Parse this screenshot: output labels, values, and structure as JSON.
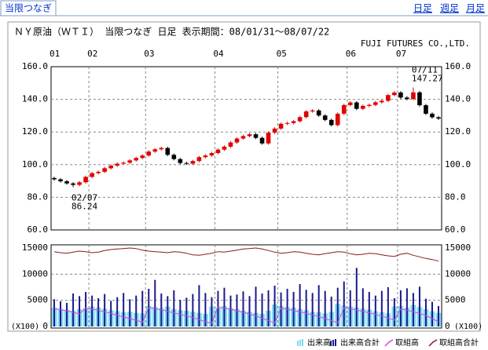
{
  "header": {
    "tab": "当限つなぎ",
    "links": [
      "日足",
      "週足",
      "月足"
    ]
  },
  "chart_data": [
    {
      "type": "candlestick",
      "title": "ＮＹ原油（ＷＴＩ） 当限つなぎ 日足 表示期間：08/01/31～08/07/22",
      "subtitle": "FUJI FUTURES CO.,LTD.",
      "up_color": "#e00000",
      "down_color": "#000000",
      "open": [
        91.8,
        91.0,
        89.8,
        88.5,
        87.6,
        89.2,
        92.5,
        94.8,
        95.6,
        97.8,
        99.4,
        100.6,
        101.2,
        102.6,
        104.1,
        105.6,
        108.0,
        109.4,
        110.2,
        106.0,
        103.4,
        101.0,
        100.6,
        102.2,
        104.6,
        105.6,
        107.1,
        109.2,
        111.0,
        113.6,
        116.0,
        117.5,
        118.6,
        116.4,
        113.0,
        119.6,
        122.1,
        125.0,
        125.5,
        126.6,
        129.1,
        132.6,
        133.2,
        130.1,
        127.4,
        124.2,
        131.2,
        136.5,
        138.1,
        134.2,
        136.0,
        136.6,
        138.2,
        139.1,
        142.6,
        144.2,
        141.1,
        140.2,
        144.3,
        136.4,
        131.2,
        129.0
      ],
      "high": [
        92.6,
        91.8,
        90.6,
        89.3,
        90.0,
        93.3,
        95.6,
        96.4,
        98.6,
        100.2,
        101.4,
        102.0,
        103.4,
        104.9,
        106.4,
        108.8,
        110.2,
        111.0,
        111.0,
        106.8,
        104.2,
        101.8,
        103.0,
        105.4,
        106.4,
        107.9,
        110.0,
        111.8,
        114.4,
        116.8,
        118.3,
        119.4,
        119.4,
        117.2,
        120.4,
        122.9,
        125.8,
        126.3,
        127.4,
        129.9,
        133.4,
        134.0,
        134.0,
        130.9,
        128.2,
        132.0,
        137.3,
        138.9,
        138.9,
        136.8,
        137.4,
        139.0,
        139.9,
        143.4,
        145.0,
        145.0,
        141.9,
        147.27,
        145.1,
        137.2,
        132.0,
        129.8
      ],
      "low": [
        90.2,
        89.0,
        87.7,
        86.24,
        86.8,
        88.4,
        91.7,
        94.0,
        94.8,
        97.0,
        98.6,
        99.8,
        100.4,
        101.8,
        103.3,
        104.8,
        107.2,
        108.6,
        105.2,
        102.6,
        100.2,
        99.8,
        99.8,
        101.4,
        103.8,
        104.8,
        106.3,
        108.4,
        110.2,
        112.8,
        115.2,
        116.7,
        115.6,
        112.2,
        112.2,
        118.8,
        121.3,
        124.2,
        124.7,
        125.8,
        128.3,
        131.8,
        129.3,
        126.6,
        123.4,
        123.4,
        130.4,
        135.7,
        133.4,
        133.4,
        135.2,
        135.8,
        137.4,
        138.3,
        141.8,
        140.3,
        139.4,
        139.4,
        135.6,
        130.4,
        128.2,
        127.4
      ],
      "close": [
        91.0,
        89.8,
        88.5,
        87.6,
        89.2,
        92.5,
        94.8,
        95.6,
        97.8,
        99.4,
        100.6,
        101.2,
        102.6,
        104.1,
        105.6,
        108.0,
        109.4,
        110.2,
        106.0,
        103.4,
        101.0,
        100.6,
        102.2,
        104.6,
        105.6,
        107.1,
        109.2,
        111.0,
        113.6,
        116.0,
        117.5,
        118.6,
        116.4,
        113.0,
        119.6,
        122.1,
        125.0,
        125.5,
        126.6,
        129.1,
        132.6,
        133.2,
        130.1,
        127.4,
        124.2,
        131.2,
        136.5,
        138.1,
        134.2,
        136.0,
        136.6,
        138.2,
        139.1,
        142.6,
        144.2,
        141.1,
        140.2,
        144.3,
        136.4,
        131.2,
        129.0,
        128.2
      ],
      "xticks": [
        {
          "value": 0,
          "label": "01"
        },
        {
          "value": 6,
          "label": "02"
        },
        {
          "value": 15,
          "label": "03"
        },
        {
          "value": 26,
          "label": "04"
        },
        {
          "value": 36,
          "label": "05"
        },
        {
          "value": 47,
          "label": "06"
        },
        {
          "value": 55,
          "label": "07"
        }
      ],
      "ylim": [
        60,
        160
      ],
      "yticks": [
        {
          "value": 60,
          "label": "60.0"
        },
        {
          "value": 80,
          "label": "80.0"
        },
        {
          "value": 100,
          "label": "100.0"
        },
        {
          "value": 120,
          "label": "120.0"
        },
        {
          "value": 140,
          "label": "140.0"
        },
        {
          "value": 160,
          "label": "160.0"
        }
      ],
      "grid": true,
      "annotations": [
        {
          "text": "02/07",
          "value": 86.24,
          "at": "low"
        },
        {
          "text": "07/11",
          "value": 147.27,
          "at": "high"
        }
      ]
    },
    {
      "type": "bar",
      "ylim": [
        0,
        15000
      ],
      "yticks": [
        0,
        5000,
        10000,
        15000
      ],
      "unit_label": "(X100)",
      "grid": true,
      "series": [
        {
          "name": "出来高",
          "color": "#80d8f0",
          "style": "bar",
          "values": [
            3600,
            3400,
            3200,
            3000,
            3300,
            3500,
            3800,
            3600,
            3400,
            3100,
            2900,
            2700,
            2800,
            2600,
            2500,
            3900,
            3700,
            3500,
            3800,
            3300,
            3100,
            3000,
            2800,
            2600,
            2400,
            3800,
            3600,
            3900,
            3500,
            3300,
            3000,
            2800,
            2600,
            2400,
            3000,
            4200,
            3900,
            3700,
            3600,
            3300,
            3100,
            2800,
            2700,
            2500,
            2800,
            4300,
            4000,
            3800,
            3600,
            3400,
            3200,
            2900,
            2700,
            2500,
            3800,
            3900,
            3600,
            4100,
            3700,
            3300,
            2900,
            2600
          ]
        },
        {
          "name": "出来高合計",
          "color": "#1a1a8c",
          "style": "bar",
          "values": [
            5200,
            4800,
            4500,
            6300,
            5800,
            6600,
            5900,
            5400,
            6200,
            4900,
            5600,
            6400,
            5200,
            5900,
            6800,
            7200,
            8900,
            6300,
            5800,
            6900,
            5100,
            5500,
            6200,
            7900,
            6400,
            5600,
            6800,
            7400,
            5900,
            6100,
            6700,
            5800,
            7600,
            6300,
            6900,
            7800,
            6500,
            7200,
            6600,
            8100,
            7000,
            6400,
            7900,
            6800,
            5700,
            7400,
            8600,
            6900,
            11200,
            7300,
            6600,
            5900,
            6800,
            7500,
            5400,
            6900,
            7300,
            6400,
            7600,
            5300,
            4700,
            3900
          ]
        },
        {
          "name": "取組高",
          "color": "#e040e0",
          "style": "line",
          "values": [
            3400,
            3200,
            3000,
            2700,
            2400,
            3500,
            3300,
            3100,
            2800,
            2500,
            2100,
            1800,
            1500,
            1200,
            800,
            3600,
            3400,
            3200,
            2900,
            2600,
            2300,
            2000,
            1700,
            1300,
            900,
            600,
            3700,
            3500,
            3300,
            3000,
            2700,
            2400,
            2000,
            1600,
            1100,
            700,
            3500,
            3300,
            3000,
            2800,
            2500,
            2200,
            1900,
            1500,
            1100,
            700,
            3600,
            3400,
            3100,
            2900,
            2600,
            2300,
            2000,
            1600,
            1200,
            3300,
            3100,
            2800,
            2500,
            2100,
            1500,
            900
          ]
        },
        {
          "name": "取組高合計",
          "color": "#8b1a1a",
          "style": "line",
          "values": [
            14300,
            14100,
            14000,
            14200,
            14400,
            14300,
            14100,
            14200,
            14500,
            14700,
            14800,
            14900,
            15000,
            14900,
            14600,
            14400,
            14300,
            14200,
            14100,
            14300,
            14200,
            14000,
            13700,
            13600,
            13800,
            14000,
            14300,
            14200,
            14400,
            14600,
            14800,
            14900,
            15000,
            14800,
            14500,
            14200,
            14000,
            14100,
            14300,
            14200,
            14000,
            13800,
            13700,
            13900,
            14100,
            14300,
            14200,
            13900,
            13700,
            13800,
            14000,
            13900,
            13700,
            13500,
            13400,
            13800,
            14000,
            13600,
            13300,
            13000,
            12800,
            12500
          ]
        }
      ]
    }
  ]
}
